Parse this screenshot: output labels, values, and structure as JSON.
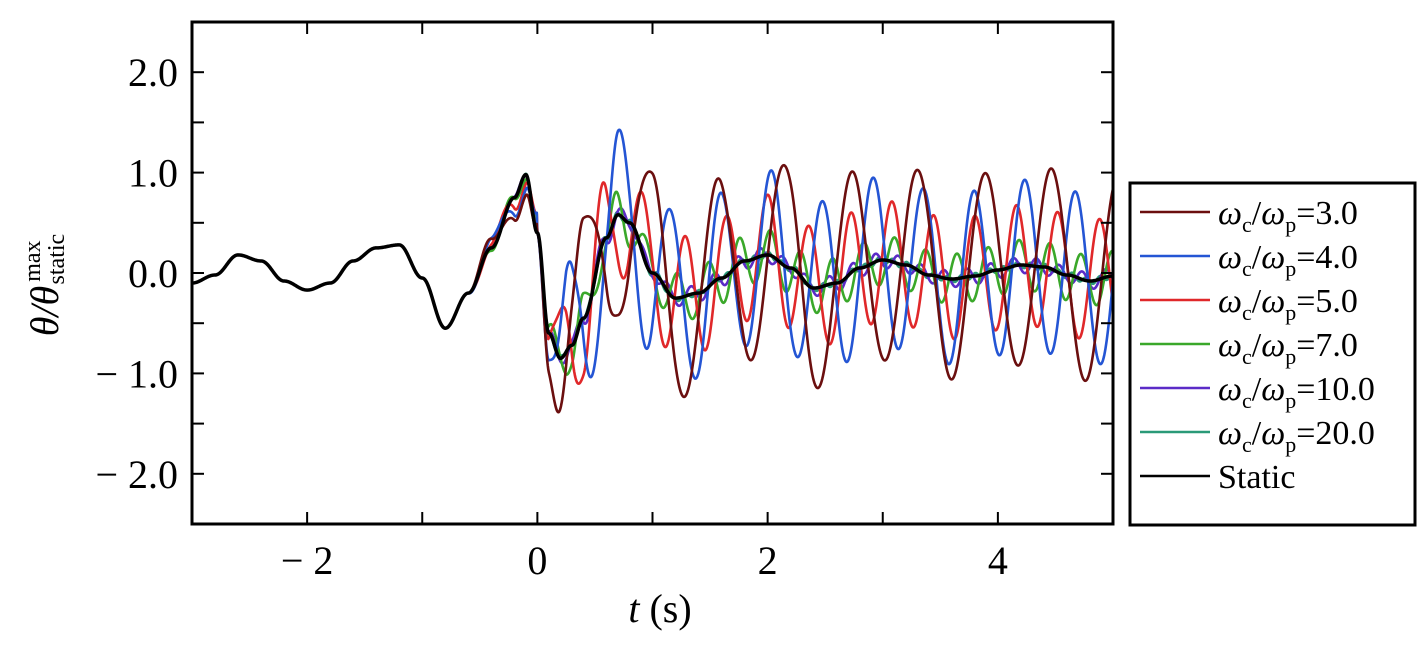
{
  "chart_data": {
    "type": "line",
    "title": "",
    "xlabel": {
      "var": "t",
      "unit": " (s)"
    },
    "ylabel": {
      "main": "θ/θ",
      "sup": "max",
      "sub": "static"
    },
    "xlim": [
      -3.0,
      5.0
    ],
    "ylim": [
      -2.5,
      2.5
    ],
    "xticks": [
      -2,
      0,
      2,
      4
    ],
    "xtick_labels": [
      "− 2",
      "0",
      "2",
      "4"
    ],
    "yticks": [
      2.0,
      1.0,
      0.0,
      -1.0,
      -2.0
    ],
    "ytick_labels": [
      "2.0",
      "1.0",
      "0.0",
      "− 1.0",
      "− 2.0"
    ],
    "grid": false,
    "legend_position": "outside-right",
    "common_x": [
      -3.0,
      -2.8,
      -2.6,
      -2.4,
      -2.2,
      -2.0,
      -1.8,
      -1.6,
      -1.4,
      -1.2,
      -1.0,
      -0.8,
      -0.6,
      -0.4,
      -0.2,
      -0.1,
      0.0,
      0.1,
      0.2,
      0.3,
      0.4
    ],
    "common_y": [
      -0.1,
      -0.02,
      0.18,
      0.12,
      -0.08,
      -0.17,
      -0.1,
      0.12,
      0.25,
      0.28,
      -0.05,
      -0.55,
      -0.2,
      0.25,
      0.75,
      0.98,
      0.4,
      -0.6,
      -0.85,
      -0.72,
      -0.45
    ],
    "series": [
      {
        "name_w": "ω",
        "sub1": "c",
        "slash": "/",
        "name_w2": "ω",
        "sub2": "p",
        "ratio": "=3.0",
        "color": "#6b0f0f",
        "amp": 1.0,
        "period": 0.58,
        "phase": 0.3,
        "decay": 0.0
      },
      {
        "name_w": "ω",
        "sub1": "c",
        "slash": "/",
        "name_w2": "ω",
        "sub2": "p",
        "ratio": "=4.0",
        "color": "#2455d4",
        "amp": 0.85,
        "period": 0.44,
        "phase": 0.8,
        "decay": 0.0
      },
      {
        "name_w": "ω",
        "sub1": "c",
        "slash": "/",
        "name_w2": "ω",
        "sub2": "p",
        "ratio": "=5.0",
        "color": "#e0282a",
        "amp": 0.6,
        "period": 0.36,
        "phase": 1.2,
        "decay": 0.0
      },
      {
        "name_w": "ω",
        "sub1": "c",
        "slash": "/",
        "name_w2": "ω",
        "sub2": "p",
        "ratio": "=7.0",
        "color": "#3aa82a",
        "amp": 0.25,
        "period": 0.27,
        "phase": 1.6,
        "decay": 0.0
      },
      {
        "name_w": "ω",
        "sub1": "c",
        "slash": "/",
        "name_w2": "ω",
        "sub2": "p",
        "ratio": "=10.0",
        "color": "#5b2bc7",
        "amp": 0.08,
        "period": 0.2,
        "phase": 0.5,
        "decay": 0.0
      },
      {
        "name_w": "ω",
        "sub1": "c",
        "slash": "/",
        "name_w2": "ω",
        "sub2": "p",
        "ratio": "=20.0",
        "color": "#2a9a78",
        "amp": 0.03,
        "period": 0.12,
        "phase": 0.2,
        "decay": 0.0
      },
      {
        "label": "Static",
        "color": "#000000",
        "static": true
      }
    ],
    "static_x": [
      0.4,
      0.6,
      0.7,
      0.8,
      1.0,
      1.2,
      1.4,
      1.6,
      1.8,
      2.0,
      2.2,
      2.4,
      2.6,
      2.8,
      3.0,
      3.2,
      3.4,
      3.6,
      3.8,
      4.0,
      4.2,
      4.4,
      4.6,
      4.8,
      5.0
    ],
    "static_y": [
      -0.45,
      0.35,
      0.58,
      0.5,
      0.0,
      -0.25,
      -0.2,
      -0.05,
      0.12,
      0.18,
      0.05,
      -0.15,
      -0.1,
      0.05,
      0.13,
      0.08,
      -0.02,
      -0.06,
      -0.03,
      0.03,
      0.08,
      0.06,
      -0.02,
      -0.08,
      -0.03
    ]
  }
}
